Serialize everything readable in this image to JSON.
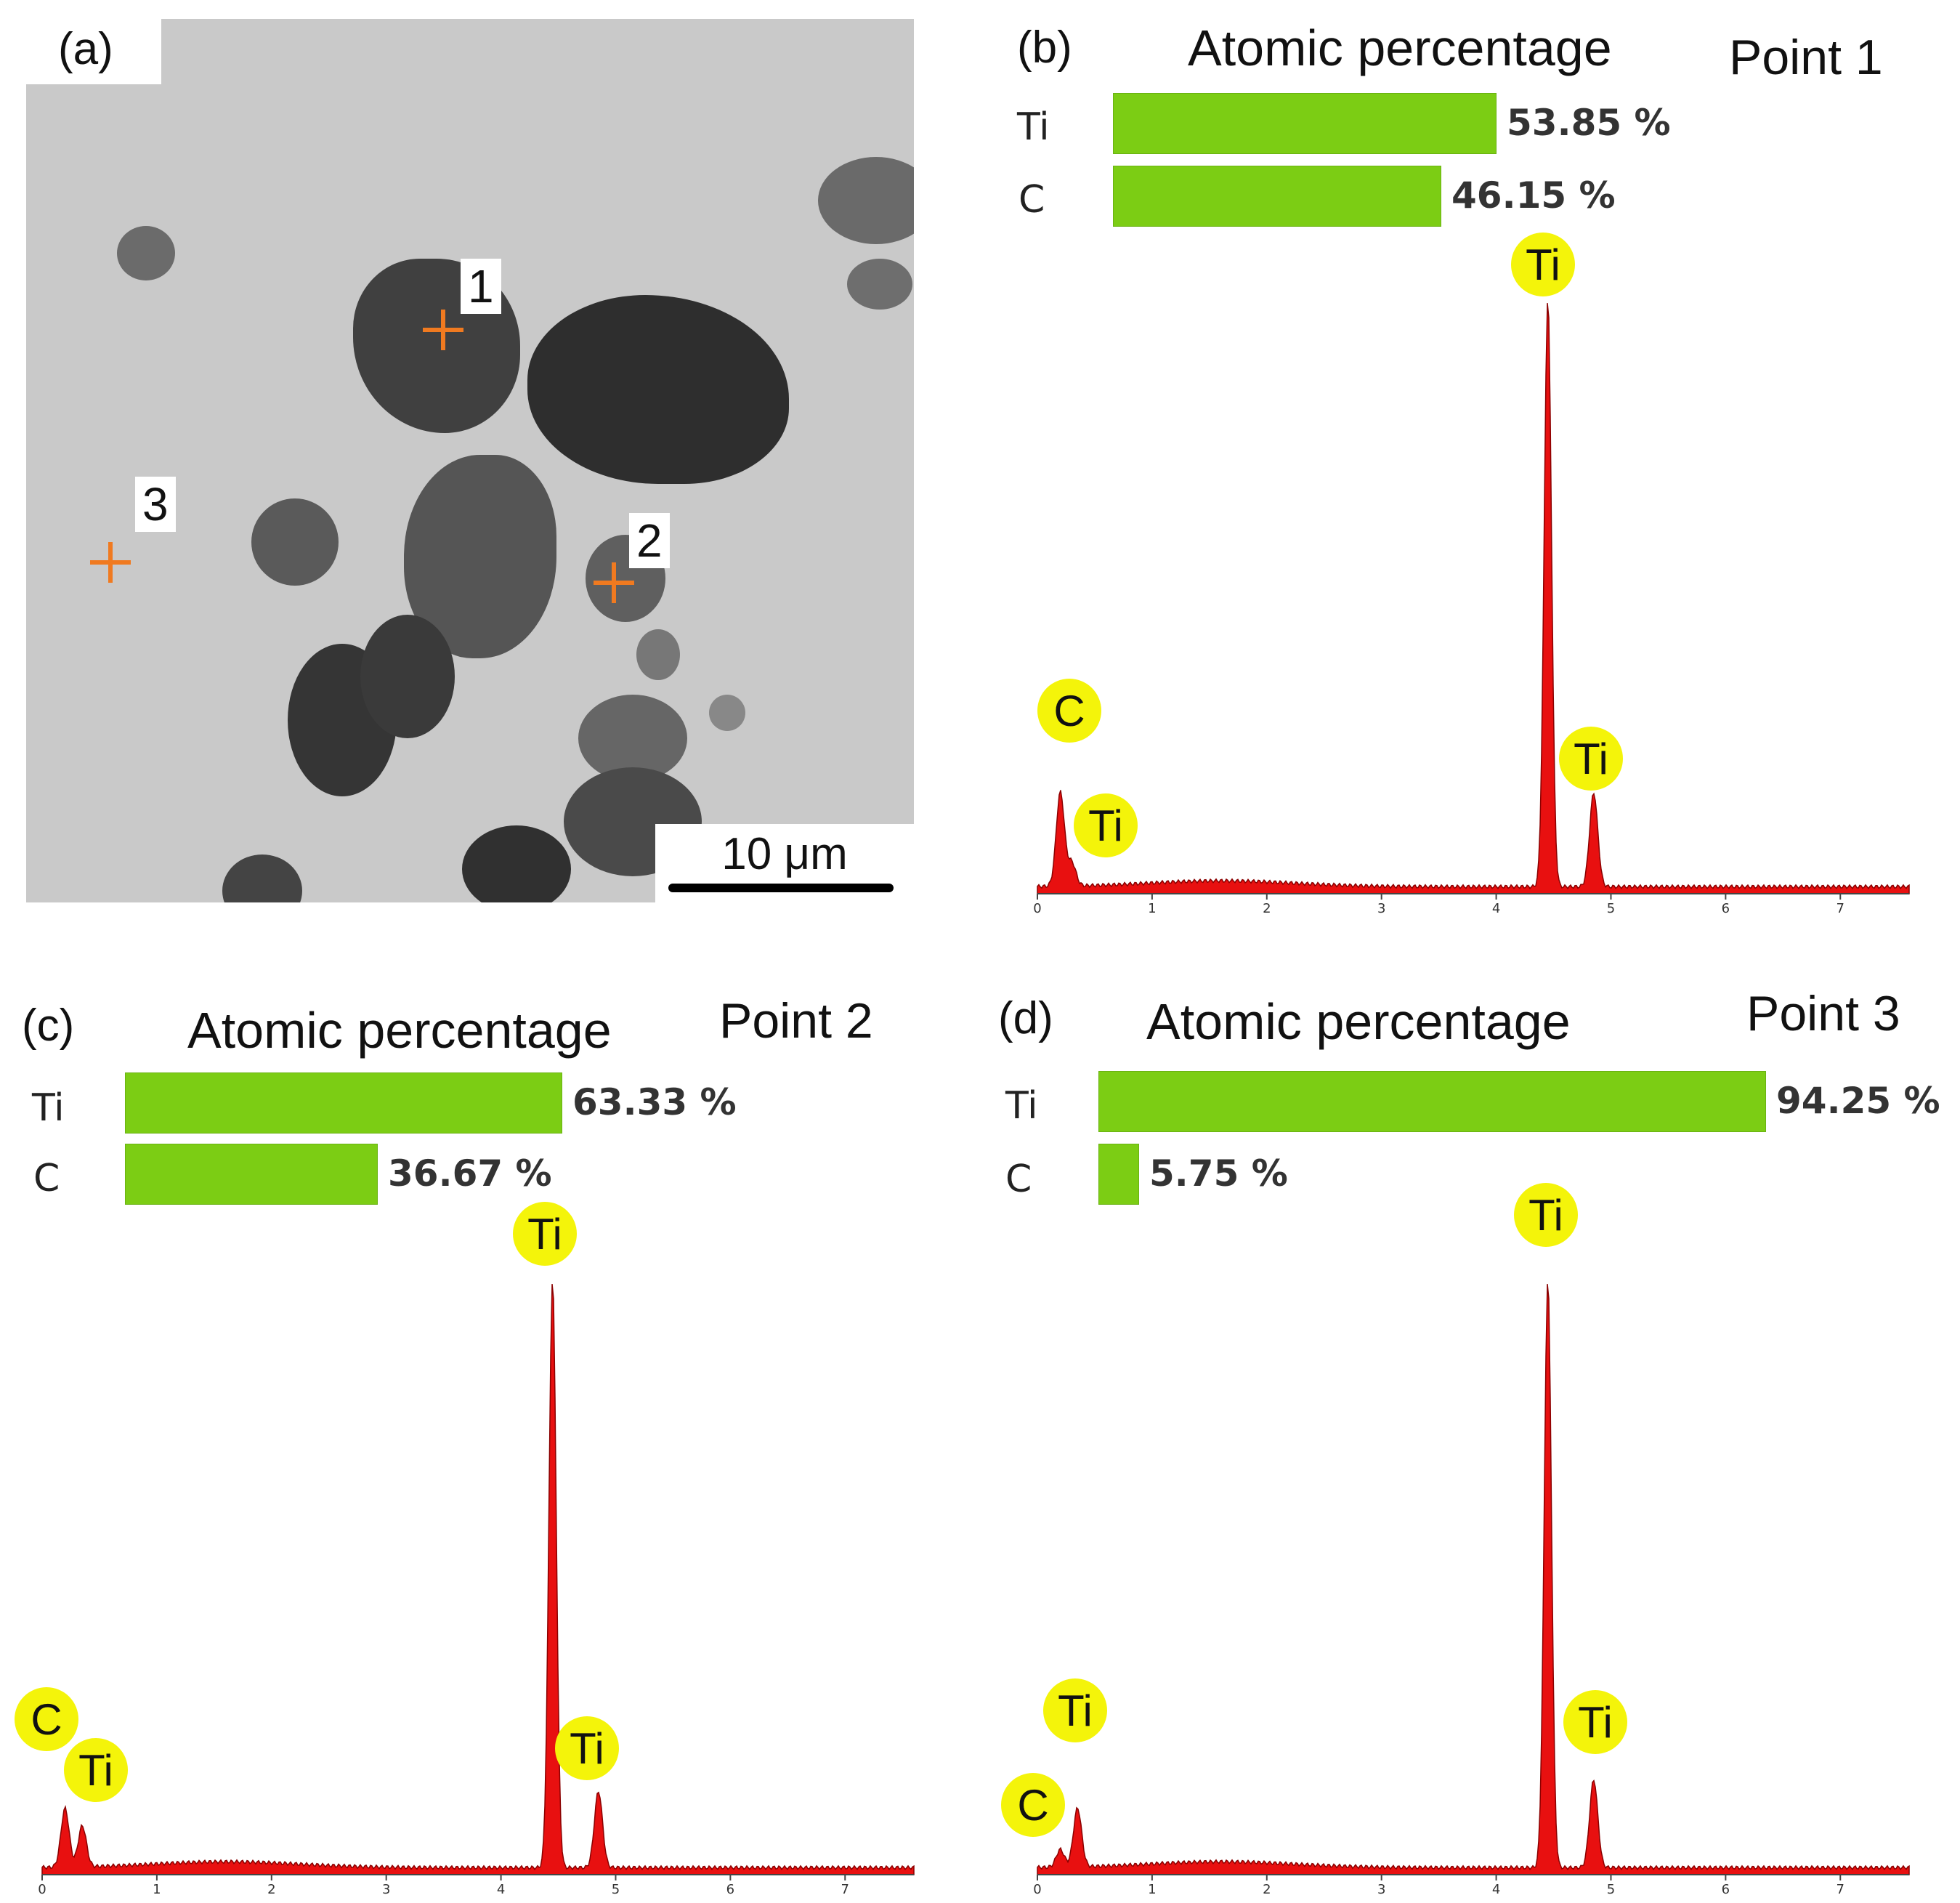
{
  "panels": {
    "a": {
      "label": "(a)",
      "points": [
        "1",
        "2",
        "3"
      ],
      "scale_bar": "10 μm"
    },
    "b": {
      "label": "(b)",
      "title": "Atomic percentage",
      "point": "Point 1"
    },
    "c": {
      "label": "(c)",
      "title": "Atomic percentage",
      "point": "Point 2"
    },
    "d": {
      "label": "(d)",
      "title": "Atomic percentage",
      "point": "Point 3"
    }
  },
  "colors": {
    "bar": "#7ccd14",
    "spectrum": "#e81010",
    "badge": "#f4f40a",
    "marker": "#f07a20"
  },
  "chart_data": [
    {
      "type": "bar",
      "panel": "b",
      "title": "Atomic percentage",
      "categories": [
        "Ti",
        "C"
      ],
      "values": [
        53.85,
        46.15
      ],
      "value_labels": [
        "53.85 %",
        "46.15 %"
      ]
    },
    {
      "type": "area",
      "panel": "b",
      "x_ticks": [
        "0",
        "1",
        "2",
        "3",
        "4",
        "5",
        "6",
        "7"
      ],
      "xlim": [
        0,
        7.6
      ],
      "peaks": [
        {
          "element": "C",
          "x": 0.2,
          "height": 0.16
        },
        {
          "element": "Ti",
          "x": 0.3,
          "height": 0.04
        },
        {
          "element": "Ti",
          "x": 4.45,
          "height": 1.0
        },
        {
          "element": "Ti",
          "x": 4.85,
          "height": 0.16
        }
      ]
    },
    {
      "type": "bar",
      "panel": "c",
      "title": "Atomic percentage",
      "categories": [
        "Ti",
        "C"
      ],
      "values": [
        63.33,
        36.67
      ],
      "value_labels": [
        "63.33 %",
        "36.67 %"
      ]
    },
    {
      "type": "area",
      "panel": "c",
      "x_ticks": [
        "0",
        "1",
        "2",
        "3",
        "4",
        "5",
        "6",
        "7"
      ],
      "xlim": [
        0,
        7.6
      ],
      "peaks": [
        {
          "element": "C",
          "x": 0.2,
          "height": 0.1
        },
        {
          "element": "Ti",
          "x": 0.35,
          "height": 0.07
        },
        {
          "element": "Ti",
          "x": 4.45,
          "height": 1.0
        },
        {
          "element": "Ti",
          "x": 4.85,
          "height": 0.13
        }
      ]
    },
    {
      "type": "bar",
      "panel": "d",
      "title": "Atomic percentage",
      "categories": [
        "Ti",
        "C"
      ],
      "values": [
        94.25,
        5.75
      ],
      "value_labels": [
        "94.25 %",
        "5.75 %"
      ]
    },
    {
      "type": "area",
      "panel": "d",
      "x_ticks": [
        "0",
        "1",
        "2",
        "3",
        "4",
        "5",
        "6",
        "7"
      ],
      "xlim": [
        0,
        7.6
      ],
      "peaks": [
        {
          "element": "C",
          "x": 0.2,
          "height": 0.03
        },
        {
          "element": "Ti",
          "x": 0.35,
          "height": 0.1
        },
        {
          "element": "Ti",
          "x": 4.45,
          "height": 1.0
        },
        {
          "element": "Ti",
          "x": 4.85,
          "height": 0.15
        }
      ]
    }
  ]
}
